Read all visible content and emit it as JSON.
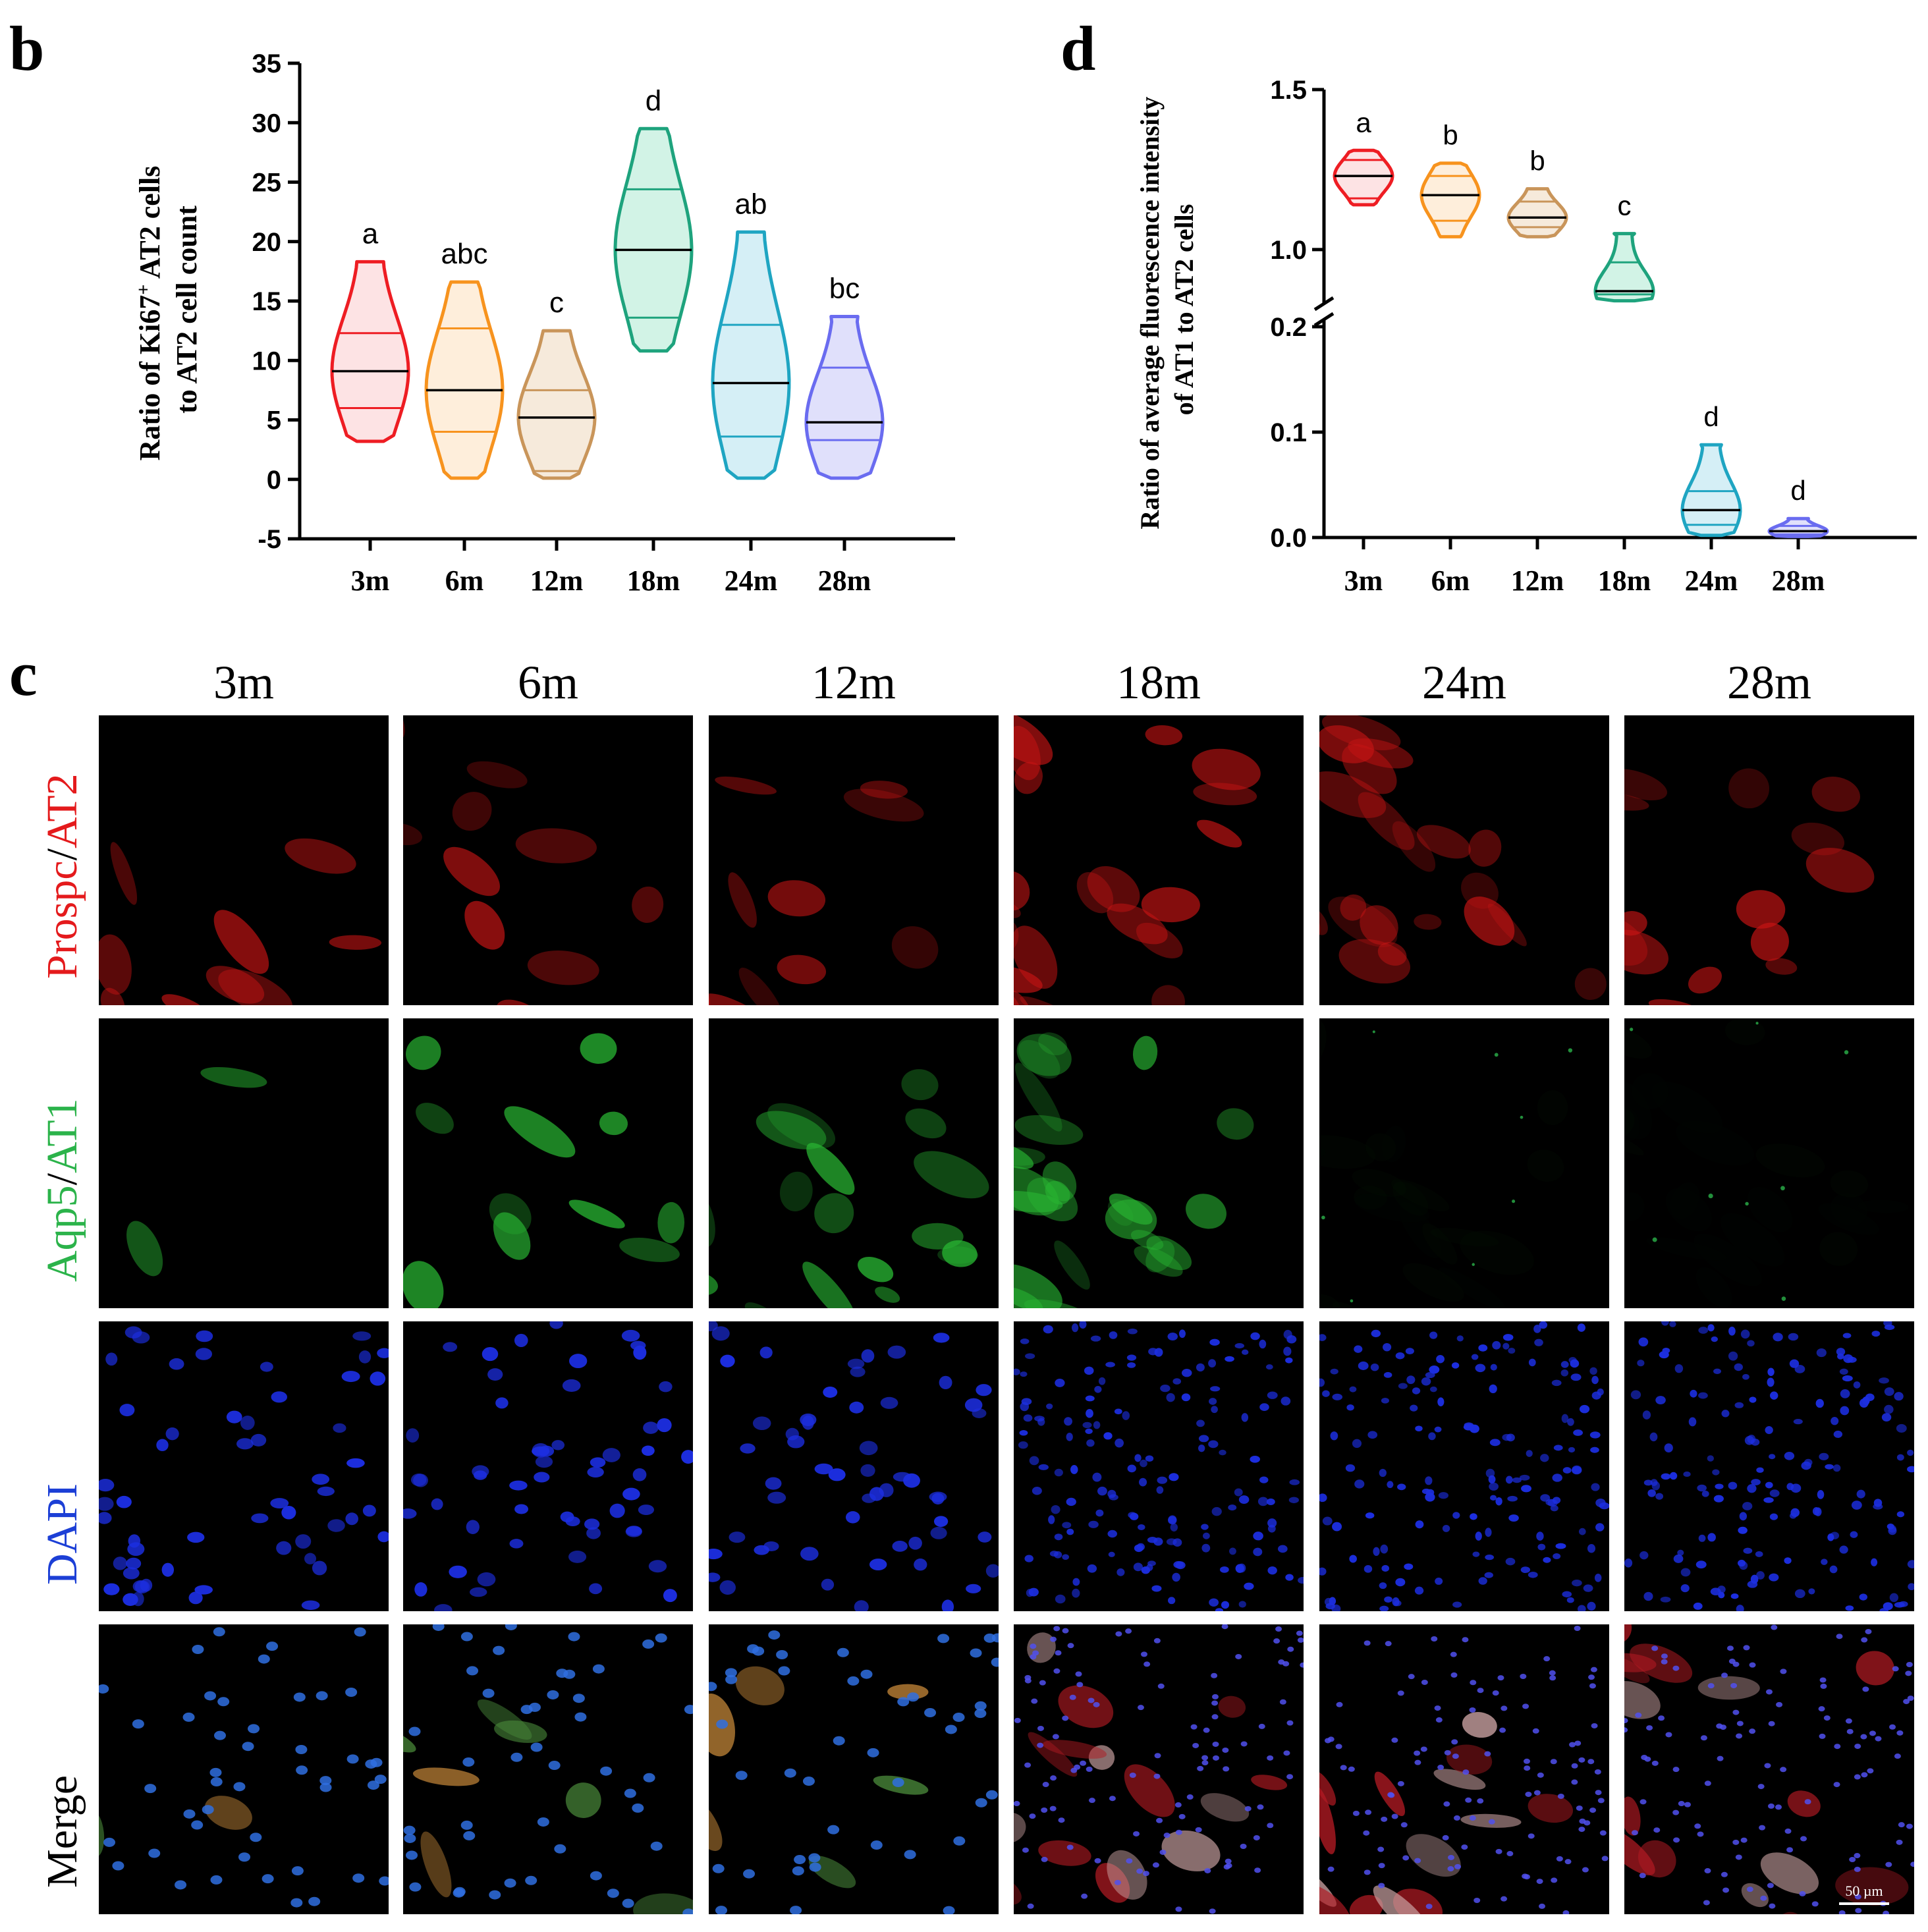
{
  "panels": {
    "b_letter": "b",
    "c_letter": "c",
    "d_letter": "d"
  },
  "chart_data": [
    {
      "type": "violin",
      "panel": "b",
      "ylabel_line1": "Ratio of Ki67",
      "ylabel_sup": "+",
      "ylabel_line1_end": " AT2 cells",
      "ylabel_line2": "to AT2 cell count",
      "ylim": [
        -5,
        35
      ],
      "yticks": [
        "-5",
        "0",
        "5",
        "10",
        "15",
        "20",
        "25",
        "30",
        "35"
      ],
      "categories": [
        "3m",
        "6m",
        "12m",
        "18m",
        "24m",
        "28m"
      ],
      "colors": [
        "#ee1d23",
        "#f7931e",
        "#c9955a",
        "#1ea37d",
        "#1fa5c2",
        "#6a6cf0"
      ],
      "fills": [
        "#fde3e4",
        "#feeedb",
        "#f6eadb",
        "#d2f3e6",
        "#d5eff6",
        "#e0e0fb"
      ],
      "groups": [
        {
          "min": 3.2,
          "max": 18.3,
          "median": 9.1,
          "q1": 6.0,
          "q3": 12.3,
          "letter": "a"
        },
        {
          "min": 0.1,
          "max": 16.6,
          "median": 7.5,
          "q1": 4.0,
          "q3": 12.7,
          "letter": "abc"
        },
        {
          "min": 0.1,
          "max": 12.5,
          "median": 5.2,
          "q1": 0.7,
          "q3": 7.5,
          "letter": "c"
        },
        {
          "min": 10.8,
          "max": 29.5,
          "median": 19.3,
          "q1": 13.6,
          "q3": 24.4,
          "letter": "d"
        },
        {
          "min": 0.1,
          "max": 20.8,
          "median": 8.1,
          "q1": 3.6,
          "q3": 13.0,
          "letter": "ab"
        },
        {
          "min": 0.1,
          "max": 13.7,
          "median": 4.8,
          "q1": 3.3,
          "q3": 9.4,
          "letter": "bc"
        }
      ]
    },
    {
      "type": "violin",
      "panel": "d",
      "ylabel_line1": "Ratio of average fluorescence intensity",
      "ylabel_line2": "of AT1 to AT2 cells",
      "y_axis": "broken",
      "lower_ylim": [
        0.0,
        0.2
      ],
      "upper_ylim": [
        0.8,
        1.5
      ],
      "yticks": [
        "0.0",
        "0.1",
        "0.2",
        "1.0",
        "1.5"
      ],
      "categories": [
        "3m",
        "6m",
        "12m",
        "18m",
        "24m",
        "28m"
      ],
      "colors": [
        "#ee1d23",
        "#f7931e",
        "#c9955a",
        "#1ea37d",
        "#1fa5c2",
        "#6a6cf0"
      ],
      "fills": [
        "#fde3e4",
        "#feeedb",
        "#f6eadb",
        "#d2f3e6",
        "#d5eff6",
        "#e0e0fb"
      ],
      "groups": [
        {
          "min": 1.14,
          "max": 1.31,
          "median": 1.23,
          "q1": 1.16,
          "q3": 1.28,
          "letter": "a"
        },
        {
          "min": 1.04,
          "max": 1.27,
          "median": 1.17,
          "q1": 1.09,
          "q3": 1.23,
          "letter": "b"
        },
        {
          "min": 1.04,
          "max": 1.19,
          "median": 1.1,
          "q1": 1.07,
          "q3": 1.15,
          "letter": "b"
        },
        {
          "min": 0.84,
          "max": 1.05,
          "median": 0.87,
          "q1": 0.86,
          "q3": 0.96,
          "letter": "c"
        },
        {
          "min": 0.002,
          "max": 0.088,
          "median": 0.026,
          "q1": 0.012,
          "q3": 0.044,
          "letter": "d"
        },
        {
          "min": 0.001,
          "max": 0.018,
          "median": 0.006,
          "q1": 0.003,
          "q3": 0.011,
          "letter": "d"
        }
      ]
    }
  ],
  "micrographs": {
    "columns": [
      "3m",
      "6m",
      "12m",
      "18m",
      "24m",
      "28m"
    ],
    "rows": [
      {
        "label_a": "Prospc",
        "label_sep": "/",
        "label_b": "AT2",
        "color": "#e41a1c",
        "channel": "red"
      },
      {
        "label_a": "Aqp5",
        "label_sep": "/",
        "label_b": "AT1",
        "color": "#2bb34a",
        "channel": "green"
      },
      {
        "label_a": "DAPI",
        "label_sep": "",
        "label_b": "",
        "color": "#1c3fd6",
        "channel": "blue"
      },
      {
        "label_a": "Merge",
        "label_sep": "",
        "label_b": "",
        "color": "#000000",
        "channel": "merge"
      }
    ],
    "green_intensity": [
      1.0,
      1.0,
      1.0,
      0.85,
      0.03,
      0.02
    ],
    "scale_bar": "50 µm"
  }
}
